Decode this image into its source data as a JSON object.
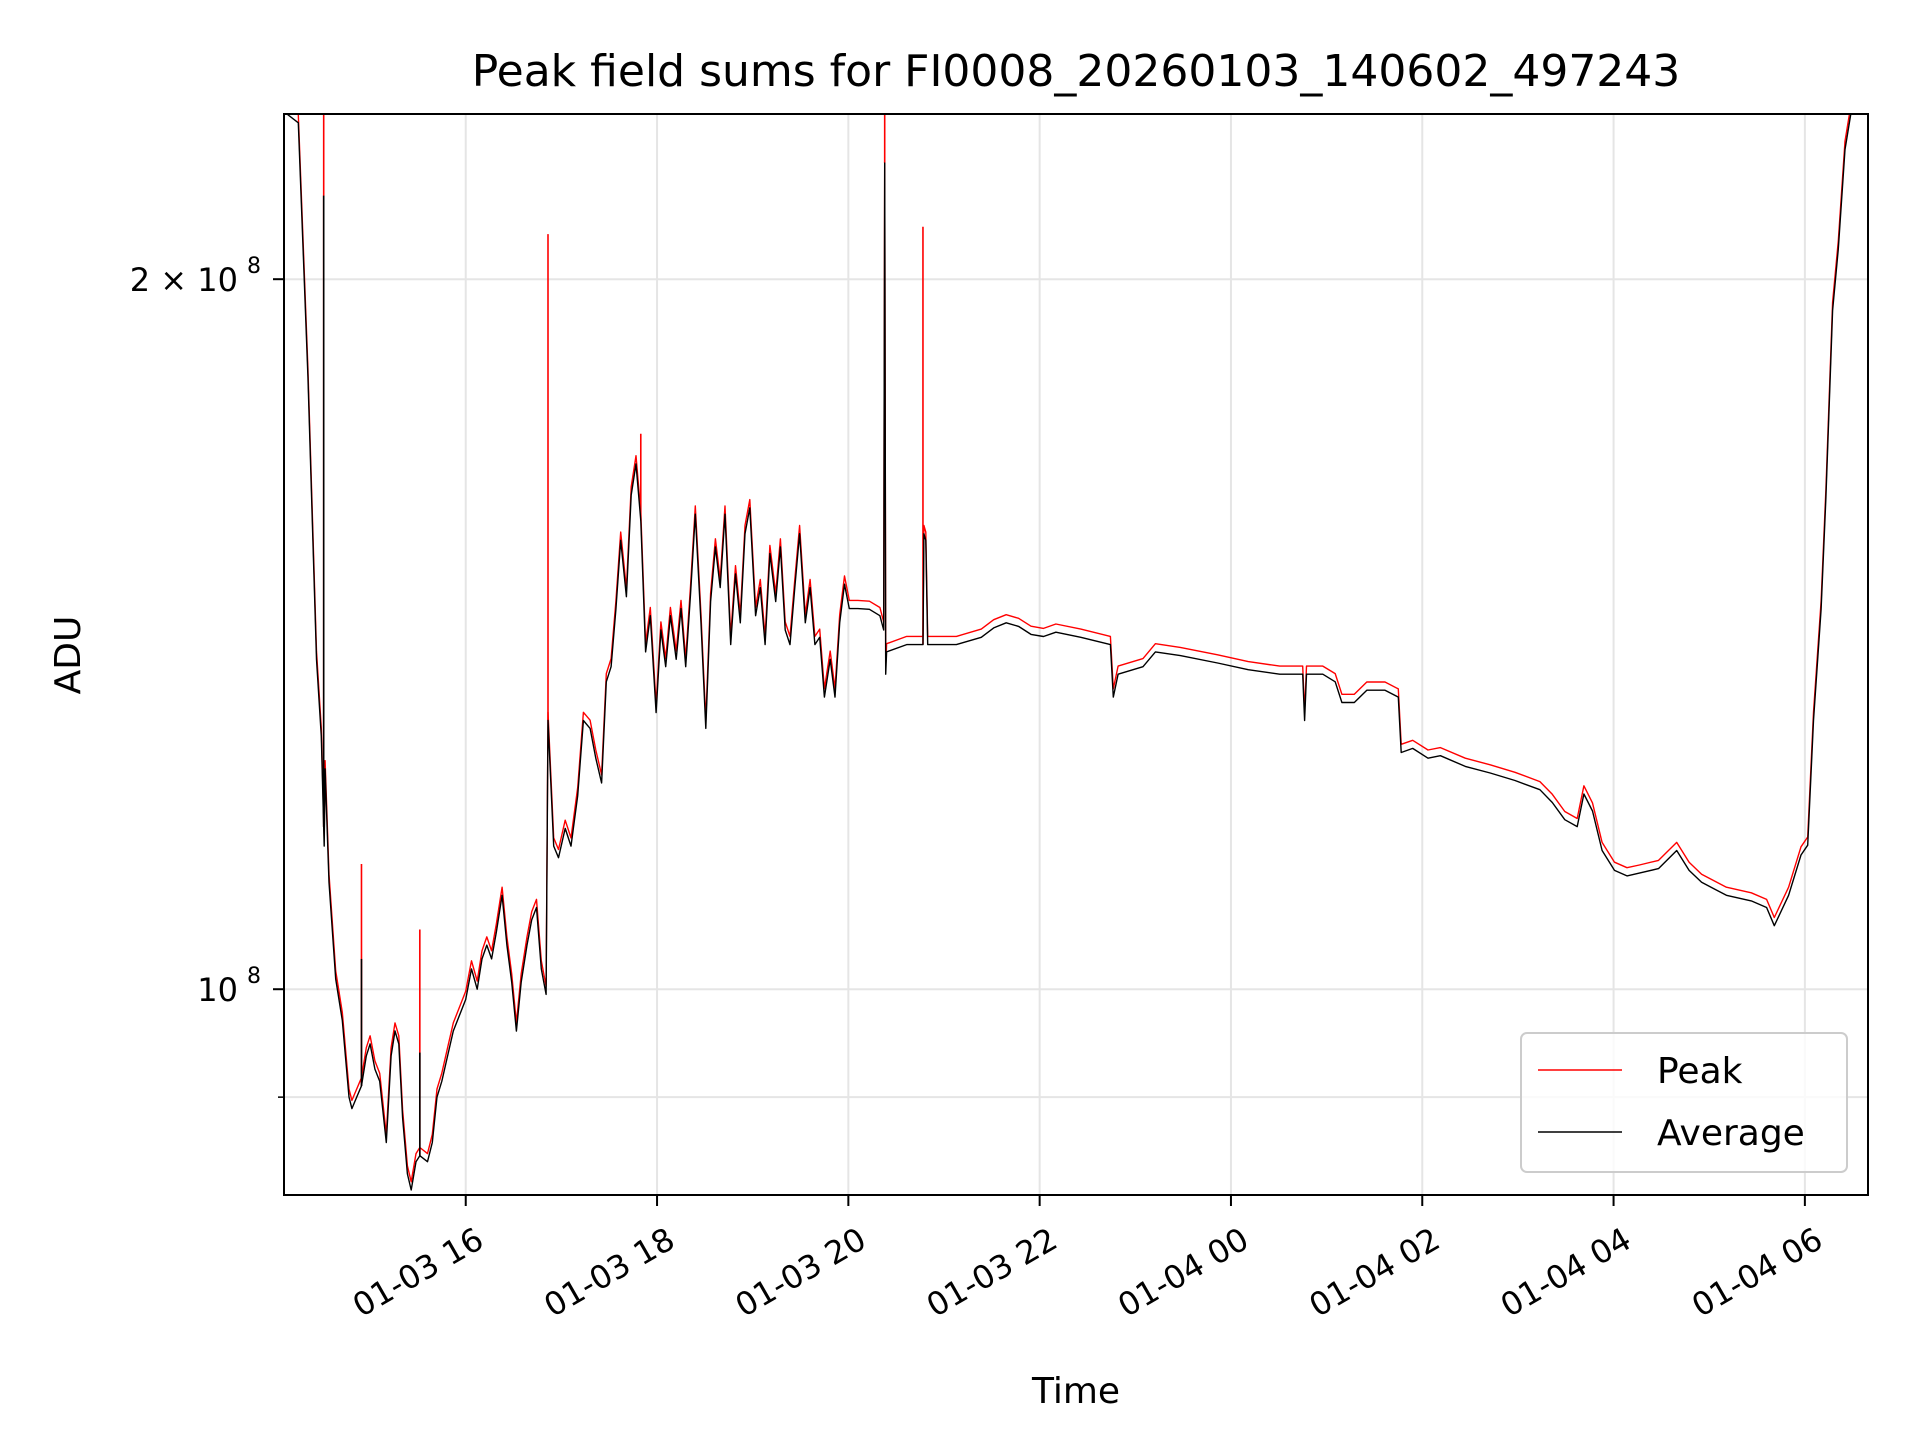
{
  "chart_data": {
    "type": "line",
    "title": "Peak field sums for FI0008_20260103_140602_497243",
    "xlabel": "Time",
    "ylabel": "ADU",
    "x_unit": "hours since 01-03 00:00",
    "y_unit": "1e8 ADU",
    "yscale": "log",
    "xlim": [
      14.1,
      30.66
    ],
    "ylim": [
      0.818,
      2.35
    ],
    "grid": true,
    "x_ticks": [
      {
        "value": 16,
        "label": "01-03 16"
      },
      {
        "value": 18,
        "label": "01-03 18"
      },
      {
        "value": 20,
        "label": "01-03 20"
      },
      {
        "value": 22,
        "label": "01-03 22"
      },
      {
        "value": 24,
        "label": "01-04 00"
      },
      {
        "value": 26,
        "label": "01-04 02"
      },
      {
        "value": 28,
        "label": "01-04 04"
      },
      {
        "value": 30,
        "label": "01-04 06"
      }
    ],
    "y_ticks": [
      {
        "value": 1,
        "label": "10",
        "exp": "8"
      },
      {
        "value": 2,
        "label": "2 × 10",
        "exp": "8"
      }
    ],
    "y_minor_ticks": [
      0.9
    ],
    "legend": {
      "placement": "bottom-right",
      "entries": [
        "Peak",
        "Average"
      ]
    },
    "colors": {
      "Peak": "#ff0000",
      "Average": "#000000",
      "grid": "#e5e5e5"
    },
    "series": [
      {
        "name": "Average",
        "points": [
          [
            14.13,
            2.35
          ],
          [
            14.25,
            2.33
          ],
          [
            14.35,
            1.82
          ],
          [
            14.44,
            1.38
          ],
          [
            14.49,
            1.28
          ],
          [
            14.52,
            1.15
          ],
          [
            14.53,
            1.24
          ],
          [
            14.57,
            1.11
          ],
          [
            14.64,
            1.01
          ],
          [
            14.71,
            0.97
          ],
          [
            14.78,
            0.9
          ],
          [
            14.81,
            0.89
          ],
          [
            14.86,
            0.9
          ],
          [
            14.91,
            0.91
          ],
          [
            14.96,
            0.937
          ],
          [
            15.0,
            0.948
          ],
          [
            15.05,
            0.925
          ],
          [
            15.1,
            0.914
          ],
          [
            15.17,
            0.861
          ],
          [
            15.22,
            0.937
          ],
          [
            15.26,
            0.96
          ],
          [
            15.3,
            0.948
          ],
          [
            15.34,
            0.882
          ],
          [
            15.39,
            0.835
          ],
          [
            15.43,
            0.822
          ],
          [
            15.48,
            0.845
          ],
          [
            15.52,
            0.85
          ],
          [
            15.6,
            0.845
          ],
          [
            15.65,
            0.861
          ],
          [
            15.7,
            0.9
          ],
          [
            15.75,
            0.914
          ],
          [
            15.81,
            0.937
          ],
          [
            15.87,
            0.96
          ],
          [
            16.0,
            0.99
          ],
          [
            16.06,
            1.02
          ],
          [
            16.12,
            1.0
          ],
          [
            16.17,
            1.03
          ],
          [
            16.22,
            1.044
          ],
          [
            16.27,
            1.03
          ],
          [
            16.32,
            1.057
          ],
          [
            16.38,
            1.096
          ],
          [
            16.43,
            1.044
          ],
          [
            16.48,
            1.007
          ],
          [
            16.53,
            0.96
          ],
          [
            16.58,
            1.007
          ],
          [
            16.64,
            1.044
          ],
          [
            16.69,
            1.07
          ],
          [
            16.74,
            1.083
          ],
          [
            16.79,
            1.02
          ],
          [
            16.84,
            0.995
          ],
          [
            16.86,
            1.3
          ],
          [
            16.92,
            1.15
          ],
          [
            16.97,
            1.137
          ],
          [
            17.04,
            1.17
          ],
          [
            17.1,
            1.15
          ],
          [
            17.17,
            1.208
          ],
          [
            17.23,
            1.3
          ],
          [
            17.3,
            1.29
          ],
          [
            17.36,
            1.253
          ],
          [
            17.42,
            1.223
          ],
          [
            17.47,
            1.35
          ],
          [
            17.52,
            1.37
          ],
          [
            17.57,
            1.449
          ],
          [
            17.62,
            1.55
          ],
          [
            17.68,
            1.467
          ],
          [
            17.73,
            1.62
          ],
          [
            17.78,
            1.67
          ],
          [
            17.83,
            1.58
          ],
          [
            17.88,
            1.39
          ],
          [
            17.93,
            1.44
          ],
          [
            17.99,
            1.31
          ],
          [
            18.04,
            1.42
          ],
          [
            18.09,
            1.37
          ],
          [
            18.14,
            1.44
          ],
          [
            18.2,
            1.38
          ],
          [
            18.25,
            1.45
          ],
          [
            18.3,
            1.37
          ],
          [
            18.35,
            1.47
          ],
          [
            18.4,
            1.59
          ],
          [
            18.46,
            1.43
          ],
          [
            18.51,
            1.29
          ],
          [
            18.56,
            1.46
          ],
          [
            18.61,
            1.54
          ],
          [
            18.66,
            1.48
          ],
          [
            18.71,
            1.59
          ],
          [
            18.77,
            1.4
          ],
          [
            18.82,
            1.5
          ],
          [
            18.87,
            1.43
          ],
          [
            18.92,
            1.56
          ],
          [
            18.97,
            1.6
          ],
          [
            19.03,
            1.44
          ],
          [
            19.08,
            1.48
          ],
          [
            19.13,
            1.4
          ],
          [
            19.18,
            1.53
          ],
          [
            19.24,
            1.46
          ],
          [
            19.29,
            1.54
          ],
          [
            19.34,
            1.42
          ],
          [
            19.39,
            1.4
          ],
          [
            19.44,
            1.48
          ],
          [
            19.49,
            1.56
          ],
          [
            19.55,
            1.43
          ],
          [
            19.6,
            1.48
          ],
          [
            19.65,
            1.4
          ],
          [
            19.7,
            1.41
          ],
          [
            19.75,
            1.33
          ],
          [
            19.81,
            1.38
          ],
          [
            19.86,
            1.33
          ],
          [
            19.91,
            1.43
          ],
          [
            19.96,
            1.485
          ],
          [
            20.01,
            1.45
          ],
          [
            20.1,
            1.45
          ],
          [
            20.22,
            1.449
          ],
          [
            20.33,
            1.44
          ],
          [
            20.37,
            1.42
          ],
          [
            20.38,
            2.24
          ],
          [
            20.39,
            1.36
          ],
          [
            20.4,
            1.39
          ],
          [
            20.61,
            1.4
          ],
          [
            20.78,
            1.4
          ],
          [
            20.79,
            1.56
          ],
          [
            20.81,
            1.55
          ],
          [
            20.83,
            1.4
          ],
          [
            20.87,
            1.4
          ],
          [
            21.13,
            1.4
          ],
          [
            21.39,
            1.41
          ],
          [
            21.52,
            1.423
          ],
          [
            21.65,
            1.43
          ],
          [
            21.78,
            1.425
          ],
          [
            21.91,
            1.414
          ],
          [
            22.04,
            1.411
          ],
          [
            22.17,
            1.417
          ],
          [
            22.43,
            1.41
          ],
          [
            22.74,
            1.4
          ],
          [
            22.77,
            1.33
          ],
          [
            22.82,
            1.36
          ],
          [
            23.08,
            1.37
          ],
          [
            23.21,
            1.39
          ],
          [
            23.47,
            1.385
          ],
          [
            23.86,
            1.375
          ],
          [
            24.18,
            1.366
          ],
          [
            24.51,
            1.36
          ],
          [
            24.7,
            1.36
          ],
          [
            24.75,
            1.36
          ],
          [
            24.77,
            1.3
          ],
          [
            24.79,
            1.36
          ],
          [
            24.96,
            1.36
          ],
          [
            25.09,
            1.35
          ],
          [
            25.16,
            1.323
          ],
          [
            25.29,
            1.323
          ],
          [
            25.42,
            1.339
          ],
          [
            25.61,
            1.339
          ],
          [
            25.75,
            1.33
          ],
          [
            25.78,
            1.26
          ],
          [
            25.9,
            1.265
          ],
          [
            26.06,
            1.253
          ],
          [
            26.19,
            1.256
          ],
          [
            26.45,
            1.243
          ],
          [
            26.71,
            1.235
          ],
          [
            26.97,
            1.226
          ],
          [
            27.23,
            1.215
          ],
          [
            27.36,
            1.2
          ],
          [
            27.49,
            1.18
          ],
          [
            27.62,
            1.172
          ],
          [
            27.69,
            1.21
          ],
          [
            27.78,
            1.19
          ],
          [
            27.88,
            1.145
          ],
          [
            28.01,
            1.123
          ],
          [
            28.14,
            1.117
          ],
          [
            28.27,
            1.12
          ],
          [
            28.47,
            1.125
          ],
          [
            28.66,
            1.145
          ],
          [
            28.79,
            1.123
          ],
          [
            28.92,
            1.11
          ],
          [
            29.18,
            1.096
          ],
          [
            29.44,
            1.09
          ],
          [
            29.6,
            1.083
          ],
          [
            29.68,
            1.064
          ],
          [
            29.83,
            1.096
          ],
          [
            29.96,
            1.14
          ],
          [
            30.03,
            1.151
          ],
          [
            30.09,
            1.3
          ],
          [
            30.17,
            1.449
          ],
          [
            30.22,
            1.616
          ],
          [
            30.29,
            1.94
          ],
          [
            30.35,
            2.06
          ],
          [
            30.42,
            2.27
          ],
          [
            30.48,
            2.35
          ]
        ],
        "spikes": [
          [
            14.515,
            2.17
          ],
          [
            14.91,
            1.03
          ],
          [
            15.52,
            0.94
          ],
          [
            16.86,
            1.3
          ],
          [
            20.38,
            2.24
          ]
        ]
      },
      {
        "name": "Peak",
        "ratio_to_average": 1.008,
        "spikes": [
          [
            14.515,
            2.4
          ],
          [
            14.91,
            1.13
          ],
          [
            15.52,
            1.06
          ],
          [
            16.86,
            2.09
          ],
          [
            17.83,
            1.72
          ],
          [
            20.38,
            2.4
          ],
          [
            20.78,
            2.105
          ]
        ]
      }
    ]
  }
}
